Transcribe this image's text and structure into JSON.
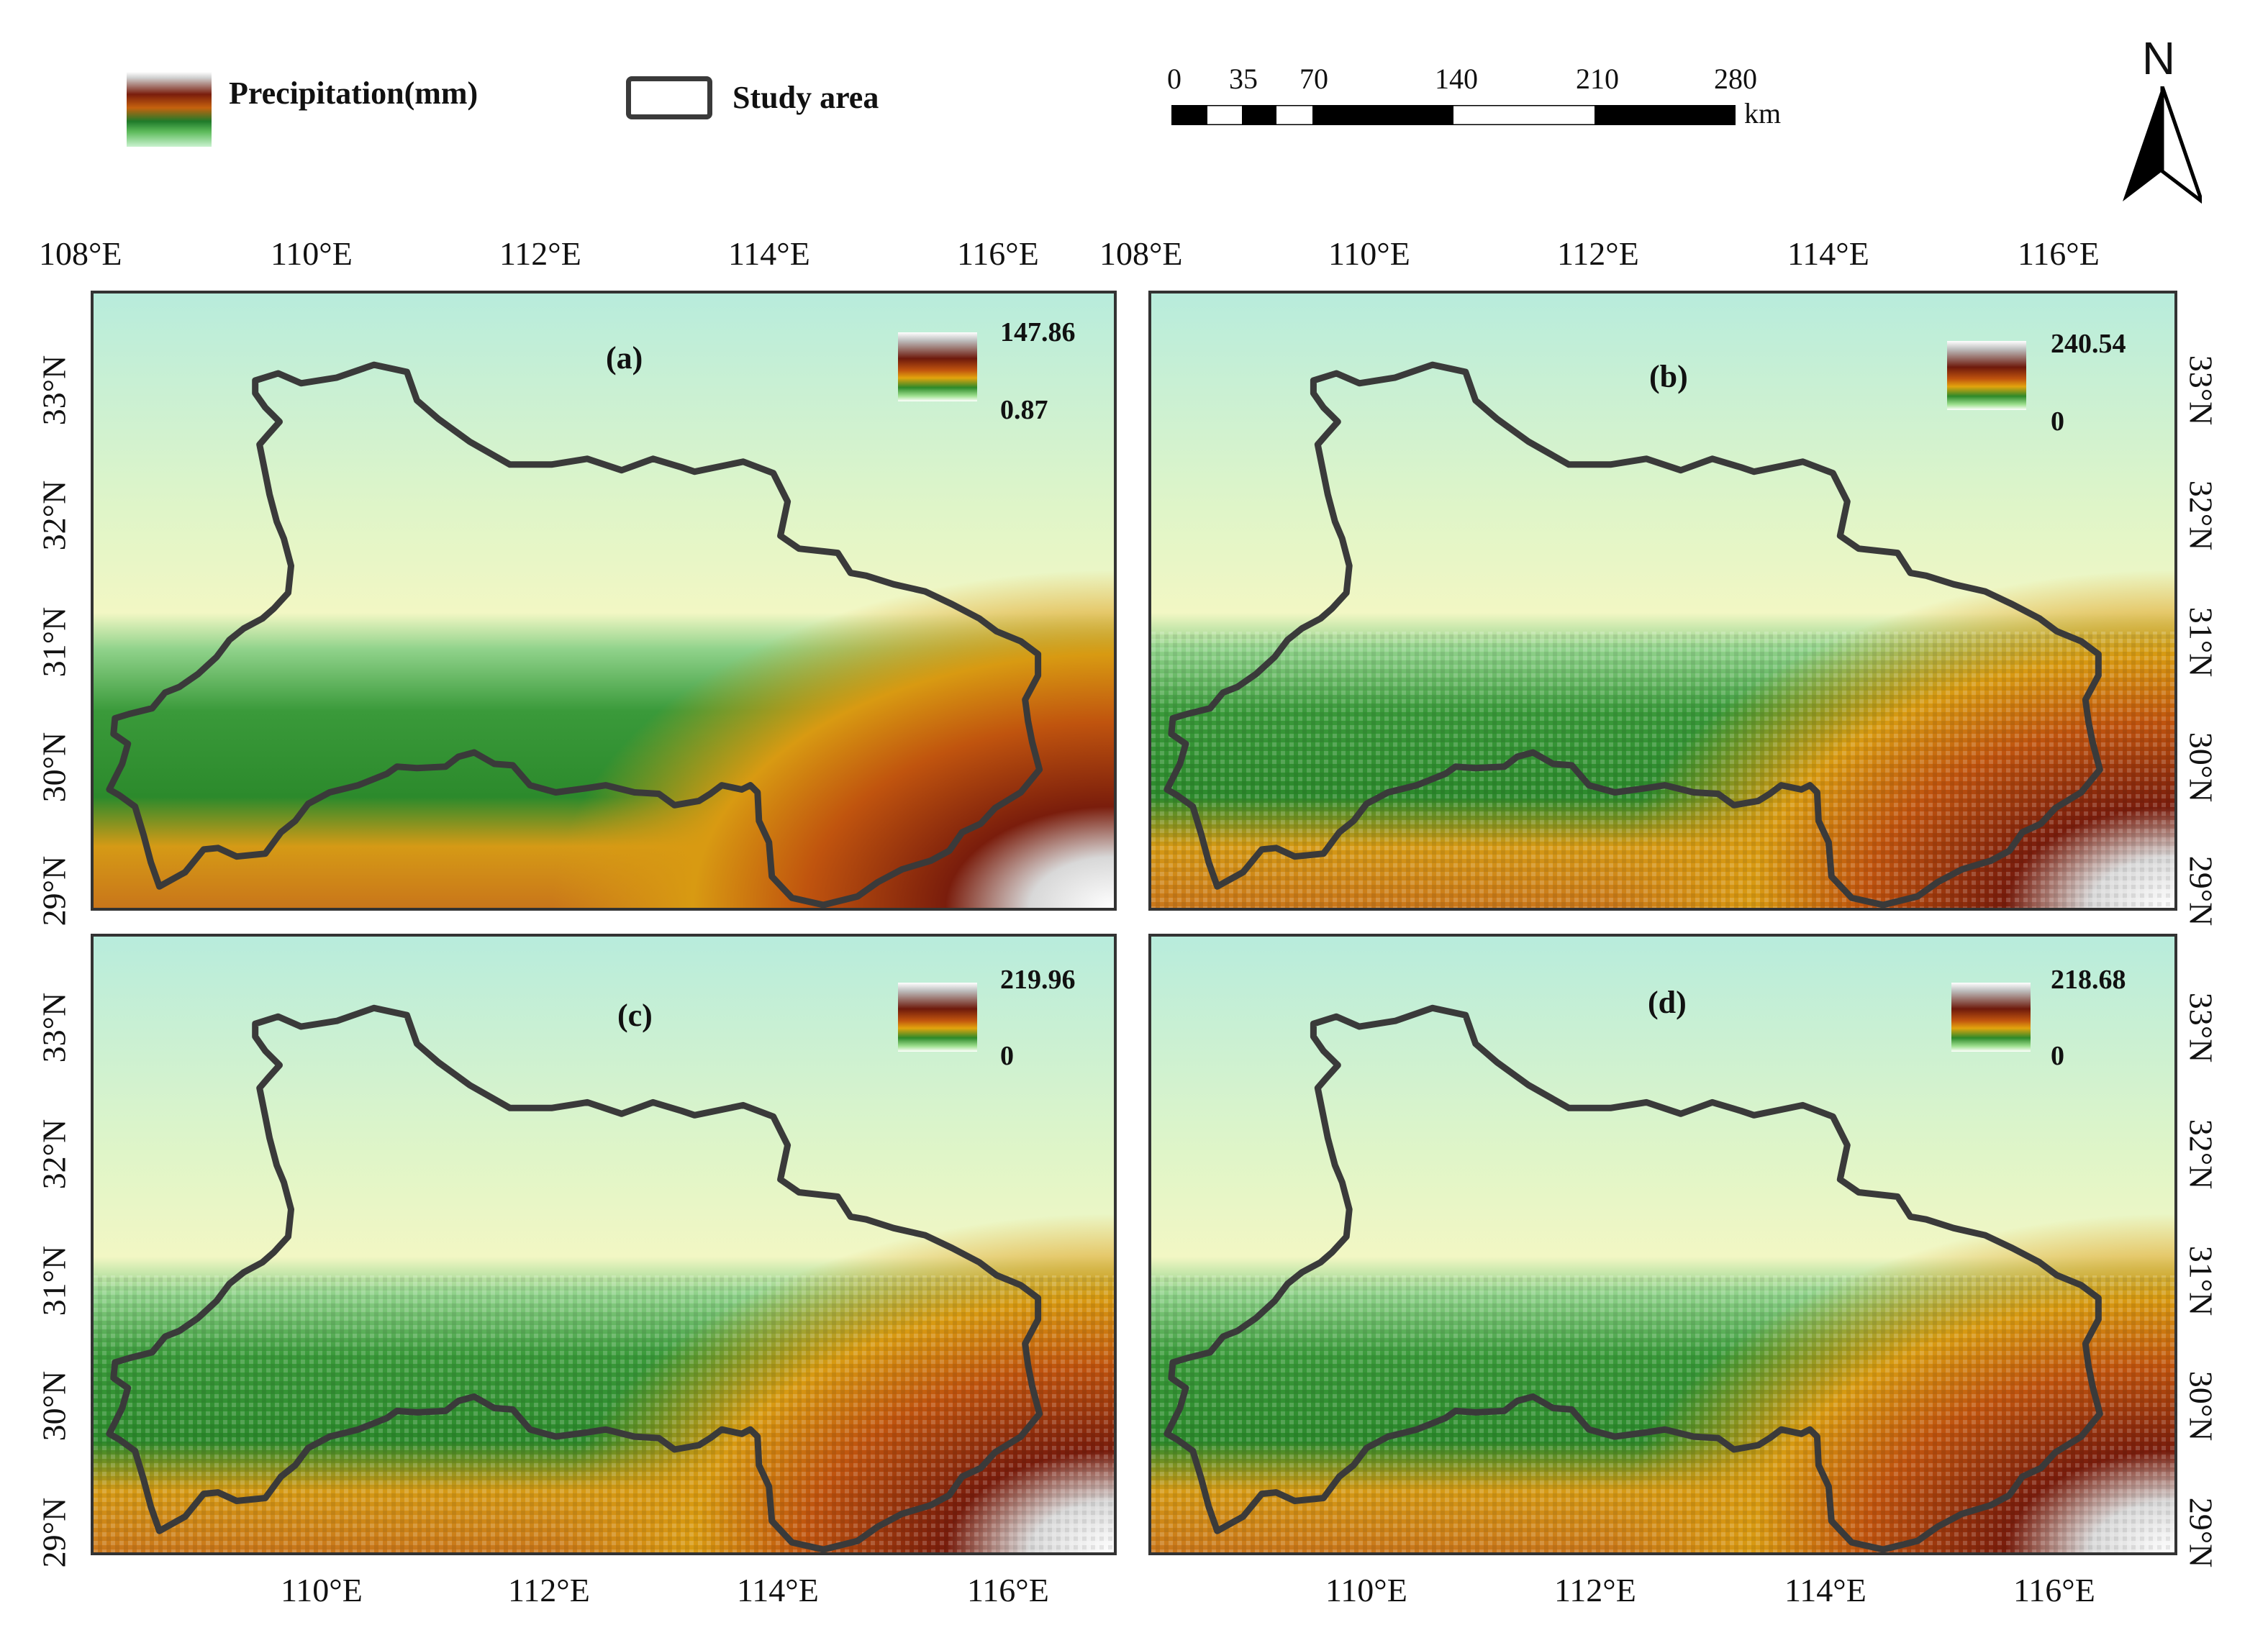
{
  "legend": {
    "precip_title": "Precipitation(mm)",
    "study_area": "Study area"
  },
  "scalebar": {
    "labels": [
      "0",
      "35",
      "70",
      "140",
      "210",
      "280"
    ],
    "unit": "km"
  },
  "north": "N",
  "top_lon_labels": [
    "108°E",
    "110°E",
    "112°E",
    "114°E",
    "116°E",
    "108°E",
    "110°E",
    "112°E",
    "114°E",
    "116°E"
  ],
  "bottom_lon_labels": [
    "110°E",
    "112°E",
    "114°E",
    "116°E",
    "110°E",
    "112°E",
    "114°E",
    "116°E"
  ],
  "lat_labels": [
    "33°N",
    "32°N",
    "31°N",
    "30°N",
    "29°N"
  ],
  "panels": [
    {
      "label": "(a)",
      "max": "147.86",
      "min": "0.87"
    },
    {
      "label": "(b)",
      "max": "240.54",
      "min": "0"
    },
    {
      "label": "(c)",
      "max": "219.96",
      "min": "0"
    },
    {
      "label": "(d)",
      "max": "218.68",
      "min": "0"
    }
  ],
  "colors": {
    "outline": "#3a3a3a",
    "low": "#b8ecdc",
    "mid": "#2e8a2a",
    "high": "#7a1d0c"
  }
}
